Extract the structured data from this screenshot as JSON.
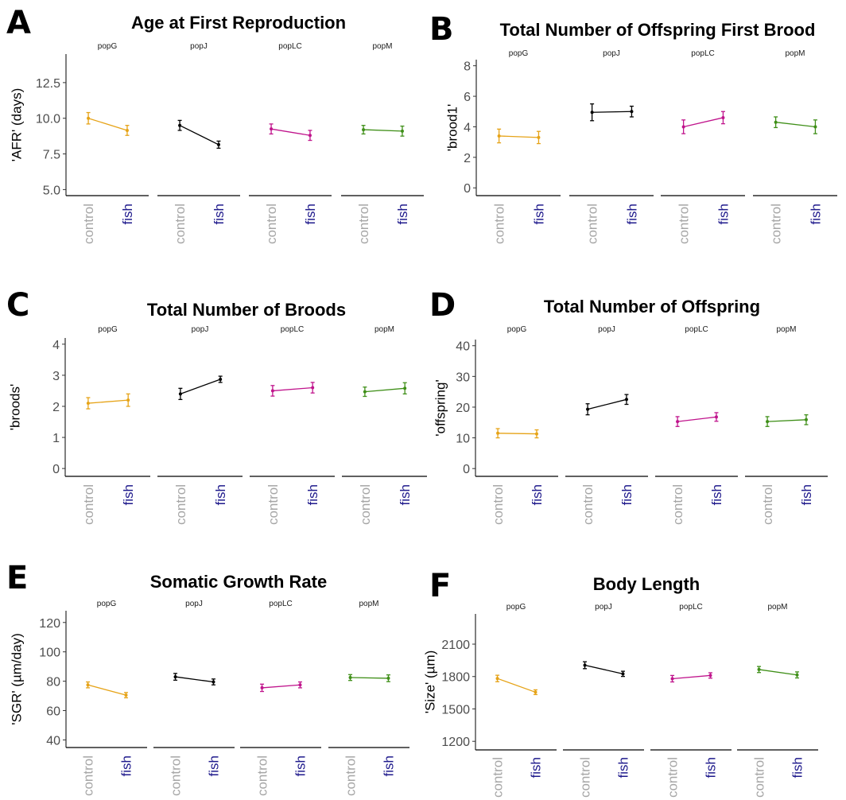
{
  "figure": {
    "facets": [
      "popG",
      "popJ",
      "popLC",
      "popM"
    ],
    "treatments": [
      "control",
      "fish"
    ],
    "colors": {
      "popG": "#E6A317",
      "popJ": "#000000",
      "popLC": "#C0148C",
      "popM": "#3F8F18",
      "control_label": "#A6A6A6",
      "fish_label": "#1F1A8C"
    }
  },
  "chart_data": [
    {
      "panel": "A",
      "type": "line",
      "title": "Age at First Reproduction",
      "ylabel": "'AFR' (days)",
      "ylim": [
        4.8,
        14.5
      ],
      "yticks": [
        "5.0",
        "7.5",
        "10.0",
        "12.5"
      ],
      "series": [
        {
          "facet": "popG",
          "values": [
            10.0,
            9.15
          ],
          "err": [
            0.4,
            0.35
          ]
        },
        {
          "facet": "popJ",
          "values": [
            9.5,
            8.15
          ],
          "err": [
            0.35,
            0.25
          ]
        },
        {
          "facet": "popLC",
          "values": [
            9.25,
            8.8
          ],
          "err": [
            0.35,
            0.35
          ]
        },
        {
          "facet": "popM",
          "values": [
            9.2,
            9.1
          ],
          "err": [
            0.3,
            0.35
          ]
        }
      ]
    },
    {
      "panel": "B",
      "type": "line",
      "title": "Total Number of Offspring First Brood",
      "ylabel": "'brood1'",
      "ylim": [
        -0.3,
        8.4
      ],
      "yticks": [
        "0",
        "2",
        "4",
        "6",
        "8"
      ],
      "series": [
        {
          "facet": "popG",
          "values": [
            3.4,
            3.3
          ],
          "err": [
            0.45,
            0.4
          ]
        },
        {
          "facet": "popJ",
          "values": [
            4.95,
            5.0
          ],
          "err": [
            0.55,
            0.35
          ]
        },
        {
          "facet": "popLC",
          "values": [
            4.0,
            4.6
          ],
          "err": [
            0.45,
            0.4
          ]
        },
        {
          "facet": "popM",
          "values": [
            4.3,
            4.0
          ],
          "err": [
            0.35,
            0.45
          ]
        }
      ]
    },
    {
      "panel": "C",
      "type": "line",
      "title": "Total Number of Broods",
      "ylabel": "'broods'",
      "ylim": [
        -0.15,
        4.2
      ],
      "yticks": [
        "0",
        "1",
        "2",
        "3",
        "4"
      ],
      "series": [
        {
          "facet": "popG",
          "values": [
            2.1,
            2.2
          ],
          "err": [
            0.18,
            0.2
          ]
        },
        {
          "facet": "popJ",
          "values": [
            2.4,
            2.87
          ],
          "err": [
            0.18,
            0.1
          ]
        },
        {
          "facet": "popLC",
          "values": [
            2.5,
            2.6
          ],
          "err": [
            0.17,
            0.17
          ]
        },
        {
          "facet": "popM",
          "values": [
            2.47,
            2.58
          ],
          "err": [
            0.15,
            0.18
          ]
        }
      ]
    },
    {
      "panel": "D",
      "type": "line",
      "title": "Total Number of Offspring",
      "ylabel": "'offspring'",
      "ylim": [
        -1.5,
        42
      ],
      "yticks": [
        "0",
        "10",
        "20",
        "30",
        "40"
      ],
      "series": [
        {
          "facet": "popG",
          "values": [
            11.5,
            11.3
          ],
          "err": [
            1.5,
            1.3
          ]
        },
        {
          "facet": "popJ",
          "values": [
            19.3,
            22.5
          ],
          "err": [
            1.8,
            1.6
          ]
        },
        {
          "facet": "popLC",
          "values": [
            15.3,
            16.8
          ],
          "err": [
            1.6,
            1.4
          ]
        },
        {
          "facet": "popM",
          "values": [
            15.3,
            15.9
          ],
          "err": [
            1.6,
            1.6
          ]
        }
      ]
    },
    {
      "panel": "E",
      "type": "line",
      "title": "Somatic Growth Rate",
      "ylabel": "'SGR' (µm/day)",
      "ylim": [
        37,
        128
      ],
      "yticks": [
        "40",
        "60",
        "80",
        "100",
        "120"
      ],
      "series": [
        {
          "facet": "popG",
          "values": [
            77.5,
            70.5
          ],
          "err": [
            2.0,
            1.8
          ]
        },
        {
          "facet": "popJ",
          "values": [
            83.0,
            79.5
          ],
          "err": [
            2.3,
            2.0
          ]
        },
        {
          "facet": "popLC",
          "values": [
            75.5,
            77.5
          ],
          "err": [
            2.5,
            2.0
          ]
        },
        {
          "facet": "popM",
          "values": [
            82.5,
            82.0
          ],
          "err": [
            2.0,
            2.3
          ]
        }
      ]
    },
    {
      "panel": "F",
      "type": "line",
      "title": "Body Length",
      "ylabel": "'Size' (µm)",
      "ylim": [
        1150,
        2380
      ],
      "yticks": [
        "1200",
        "1500",
        "1800",
        "2100"
      ],
      "series": [
        {
          "facet": "popG",
          "values": [
            1782,
            1655
          ],
          "err": [
            30,
            22
          ]
        },
        {
          "facet": "popJ",
          "values": [
            1905,
            1825
          ],
          "err": [
            32,
            24
          ]
        },
        {
          "facet": "popLC",
          "values": [
            1780,
            1810
          ],
          "err": [
            30,
            25
          ]
        },
        {
          "facet": "popM",
          "values": [
            1865,
            1815
          ],
          "err": [
            28,
            28
          ]
        }
      ]
    }
  ]
}
